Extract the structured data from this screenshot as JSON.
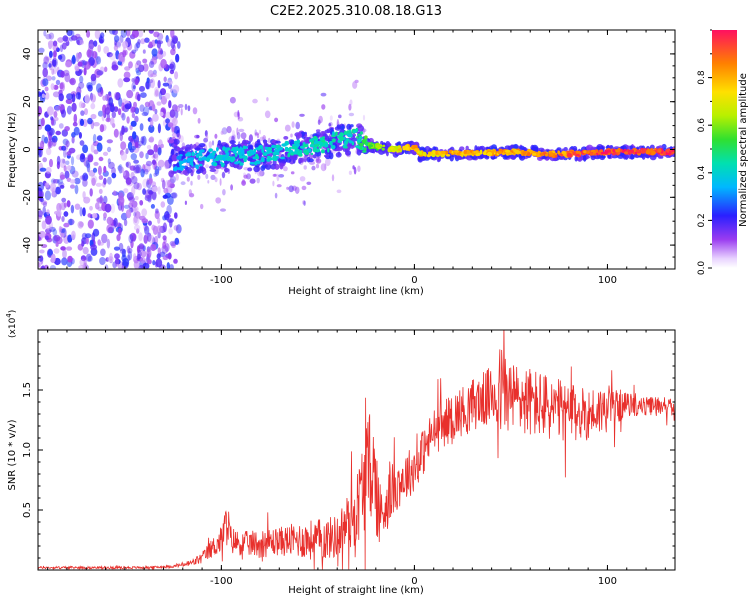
{
  "title": "C2E2.2025.310.08.18.G13",
  "colors": {
    "snr_line": "#e8302c",
    "axis": "#000000",
    "scatter_faint": "#c9a8f0",
    "scatter_strong": "#7a22e8"
  },
  "chart_data": [
    {
      "type": "heatmap",
      "name": "spectrogram",
      "xlabel": "Height of straight line (km)",
      "ylabel": "Frequency (Hz)",
      "xlim": [
        -195,
        135
      ],
      "ylim": [
        -50,
        50
      ],
      "xticks": [
        -100,
        0,
        100
      ],
      "yticks": [
        -40,
        -20,
        0,
        20,
        40
      ],
      "colorbar": {
        "label": "Normalized spectral amplitude",
        "range": [
          0,
          1
        ],
        "ticks": [
          "0.0",
          "0.2",
          "0.4",
          "0.6",
          "0.8"
        ],
        "tick_values": [
          0,
          0.2,
          0.4,
          0.6,
          0.8
        ]
      },
      "noise_region": {
        "x": [
          -195,
          -125
        ],
        "y": [
          -50,
          50
        ],
        "amplitude": [
          0.05,
          0.25
        ]
      },
      "ridge": [
        {
          "x": -125,
          "y": -5,
          "amplitude": 0.35
        },
        {
          "x": -100,
          "y": -3,
          "amplitude": 0.4
        },
        {
          "x": -75,
          "y": -2,
          "amplitude": 0.42
        },
        {
          "x": -50,
          "y": 2,
          "amplitude": 0.45
        },
        {
          "x": -30,
          "y": 5,
          "amplitude": 0.45
        },
        {
          "x": -25,
          "y": 2,
          "amplitude": 0.55
        },
        {
          "x": -10,
          "y": 0,
          "amplitude": 0.75
        },
        {
          "x": 0,
          "y": 1,
          "amplitude": 0.85
        },
        {
          "x": 3,
          "y": -2,
          "amplitude": 0.8
        },
        {
          "x": 50,
          "y": -1,
          "amplitude": 0.85
        },
        {
          "x": 75,
          "y": -2,
          "amplitude": 0.9
        },
        {
          "x": 105,
          "y": -1,
          "amplitude": 1.0
        },
        {
          "x": 135,
          "y": -1,
          "amplitude": 1.0
        }
      ]
    },
    {
      "type": "line",
      "name": "snr",
      "xlabel": "Height of straight line (km)",
      "ylabel": "SNR (10 * v/v)",
      "multiplier_label": "(x10",
      "multiplier_exp": "4",
      "multiplier_close": ")",
      "xlim": [
        -195,
        135
      ],
      "ylim": [
        0,
        2.0
      ],
      "xticks": [
        -100,
        0,
        100
      ],
      "yticks": [
        "0.5",
        "1.0",
        "1.5"
      ],
      "ytick_values": [
        0.5,
        1.0,
        1.5
      ],
      "series": [
        {
          "name": "SNR",
          "color": "#e8302c",
          "x": [
            -195,
            -160,
            -140,
            -125,
            -115,
            -110,
            -105,
            -100,
            -97,
            -95,
            -90,
            -80,
            -70,
            -60,
            -50,
            -40,
            -30,
            -25,
            -22,
            -20,
            -18,
            -15,
            -10,
            0,
            10,
            20,
            30,
            40,
            45,
            50,
            60,
            70,
            80,
            90,
            100,
            110,
            120,
            130,
            135
          ],
          "mean": [
            0.02,
            0.02,
            0.02,
            0.03,
            0.06,
            0.1,
            0.18,
            0.25,
            0.4,
            0.25,
            0.22,
            0.22,
            0.24,
            0.25,
            0.25,
            0.28,
            0.5,
            0.8,
            0.9,
            0.7,
            0.45,
            0.55,
            0.7,
            0.85,
            1.15,
            1.28,
            1.38,
            1.45,
            1.5,
            1.45,
            1.4,
            1.35,
            1.3,
            1.3,
            1.35,
            1.38,
            1.36,
            1.38,
            1.32
          ],
          "amp": [
            0.01,
            0.01,
            0.01,
            0.01,
            0.03,
            0.05,
            0.08,
            0.12,
            0.2,
            0.12,
            0.1,
            0.12,
            0.12,
            0.15,
            0.18,
            0.18,
            0.3,
            0.45,
            0.45,
            0.4,
            0.3,
            0.25,
            0.22,
            0.2,
            0.2,
            0.2,
            0.22,
            0.25,
            0.4,
            0.3,
            0.3,
            0.28,
            0.25,
            0.22,
            0.2,
            0.1,
            0.08,
            0.08,
            0.06
          ]
        }
      ]
    }
  ]
}
